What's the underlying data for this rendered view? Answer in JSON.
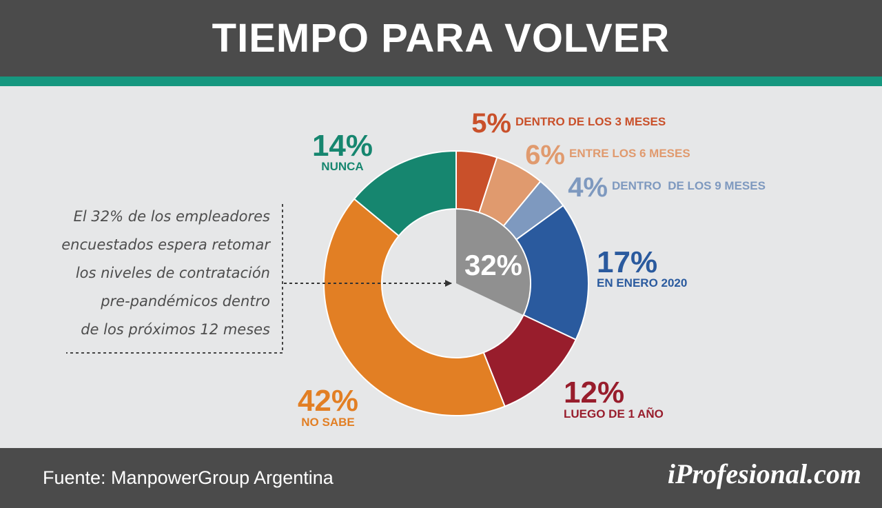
{
  "header": {
    "title": "TIEMPO PARA VOLVER"
  },
  "annotation": {
    "lines": [
      "El 32% de los empleadores",
      "encuestados espera retomar",
      "los niveles de contratación",
      "pre-pandémicos dentro",
      "de los próximos 12 meses"
    ]
  },
  "footer": {
    "source": "Fuente: ManpowerGroup Argentina",
    "brand": "iProfesional.com"
  },
  "chart_data": {
    "type": "pie",
    "variant": "donut",
    "title": "TIEMPO PARA VOLVER",
    "slices": [
      {
        "label": "DENTRO DE LOS 3 MESES",
        "value_label": "5%",
        "value": 5,
        "color": "#c9502a"
      },
      {
        "label": "ENTRE LOS 6 MESES",
        "value_label": "6%",
        "value": 6,
        "color": "#e09a6e"
      },
      {
        "label": "DENTRO  DE LOS 9 MESES",
        "value_label": "4%",
        "value": 4,
        "color": "#7e99bf"
      },
      {
        "label": "EN ENERO 2020",
        "value_label": "17%",
        "value": 17,
        "color": "#2a5a9e"
      },
      {
        "label": "LUEGO DE 1 AÑO",
        "value_label": "12%",
        "value": 12,
        "color": "#981d2c"
      },
      {
        "label": "NO SABE",
        "value_label": "42%",
        "value": 42,
        "color": "#e27f24"
      },
      {
        "label": "NUNCA",
        "value_label": "14%",
        "value": 14,
        "color": "#16866f"
      }
    ],
    "center": {
      "value_label": "32%",
      "value": 32,
      "color": "#909090"
    }
  }
}
